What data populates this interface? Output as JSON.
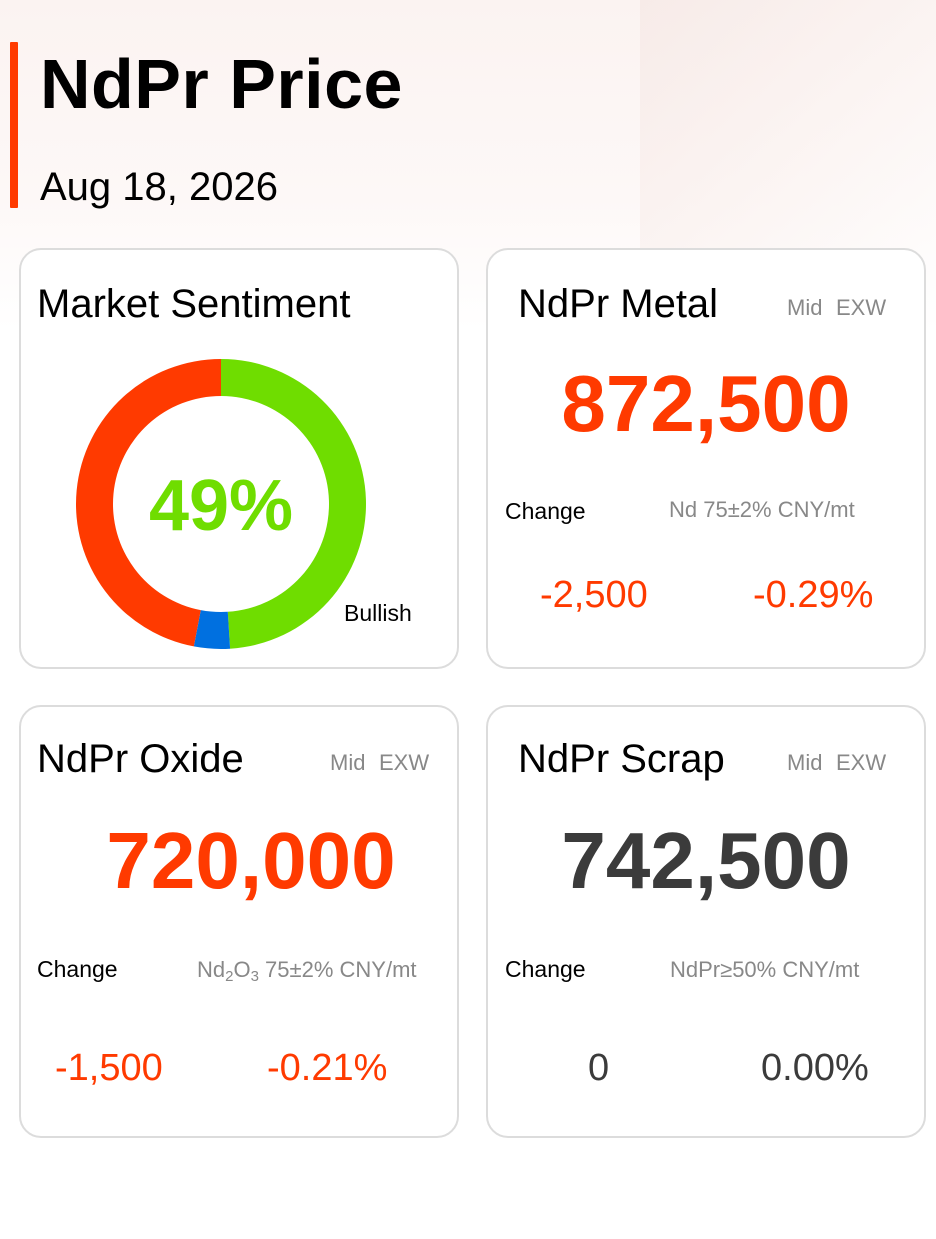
{
  "header": {
    "title": "NdPr Price",
    "date": "Aug 18, 2026"
  },
  "colors": {
    "accent": "#ff3a00",
    "bullish": "#6fdd00",
    "bearish": "#ff3a00",
    "neutral": "#0070e0",
    "dark_value": "#3b3b3b"
  },
  "sentiment": {
    "title": "Market Sentiment",
    "percent_label": "49%",
    "label": "Bullish",
    "bullish_fraction": 0.49,
    "neutral_fraction": 0.04,
    "bearish_fraction": 0.47
  },
  "metal": {
    "title": "NdPr Metal",
    "tag_mid": "Mid",
    "tag_exw": "EXW",
    "price": "872,500",
    "change_label": "Change",
    "spec": "Nd 75±2% CNY/mt",
    "change_abs": "-2,500",
    "change_pct": "-0.29%"
  },
  "oxide": {
    "title": "NdPr Oxide",
    "tag_mid": "Mid",
    "tag_exw": "EXW",
    "price": "720,000",
    "change_label": "Change",
    "spec_prefix": "Nd",
    "spec_sub1": "2",
    "spec_mid": "O",
    "spec_sub2": "3",
    "spec_suffix": " 75±2% CNY/mt",
    "change_abs": "-1,500",
    "change_pct": "-0.21%"
  },
  "scrap": {
    "title": "NdPr Scrap",
    "tag_mid": "Mid",
    "tag_exw": "EXW",
    "price": "742,500",
    "change_label": "Change",
    "spec": "NdPr≥50% CNY/mt",
    "change_abs": "0",
    "change_pct": "0.00%"
  }
}
